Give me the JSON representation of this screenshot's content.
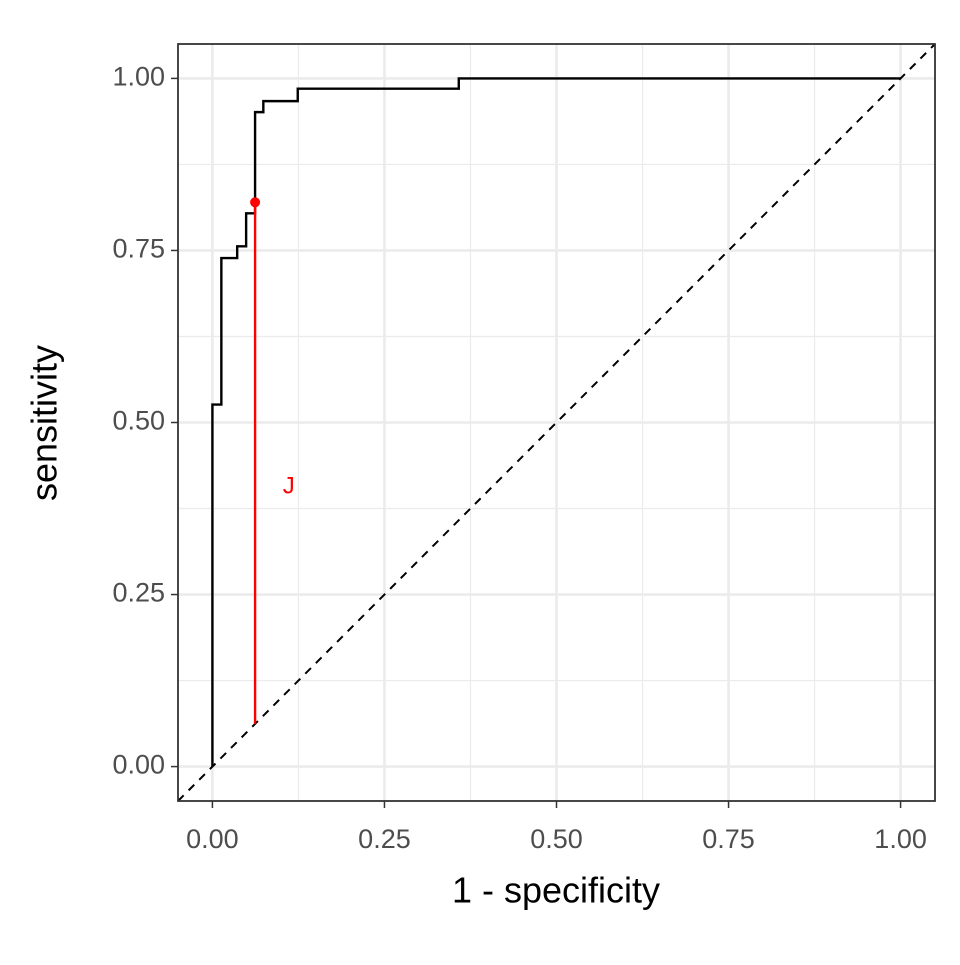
{
  "chart_data": {
    "type": "line",
    "xlabel": "1 - specificity",
    "ylabel": "sensitivity",
    "xlim": [
      -0.05,
      1.05
    ],
    "ylim": [
      -0.05,
      1.05
    ],
    "xticks": [
      {
        "value": 0,
        "label": "0.00"
      },
      {
        "value": 0.25,
        "label": "0.25"
      },
      {
        "value": 0.5,
        "label": "0.50"
      },
      {
        "value": 0.75,
        "label": "0.75"
      },
      {
        "value": 1,
        "label": "1.00"
      }
    ],
    "yticks": [
      {
        "value": 0,
        "label": "0.00"
      },
      {
        "value": 0.25,
        "label": "0.25"
      },
      {
        "value": 0.5,
        "label": "0.50"
      },
      {
        "value": 0.75,
        "label": "0.75"
      },
      {
        "value": 1,
        "label": "1.00"
      }
    ],
    "minor_xticks": [
      0.125,
      0.375,
      0.625,
      0.875
    ],
    "minor_yticks": [
      0.125,
      0.375,
      0.625,
      0.875
    ],
    "grid": true,
    "diagonal": true,
    "series": [
      {
        "color": "#000000",
        "x": [
          0,
          0,
          0.013,
          0.013,
          0.036,
          0.036,
          0.049,
          0.049,
          0.062,
          0.062,
          0.074,
          0.074,
          0.124,
          0.124,
          0.358,
          0.358,
          1
        ],
        "values": [
          0,
          0.526,
          0.526,
          0.739,
          0.739,
          0.756,
          0.756,
          0.804,
          0.804,
          0.951,
          0.951,
          0.967,
          0.967,
          0.985,
          0.985,
          1,
          1
        ]
      }
    ],
    "youden": {
      "x": 0.062,
      "y": 0.82,
      "y0": 0.062,
      "color": "#ff0000",
      "label": "J",
      "label_x": 0.111,
      "label_y": 0.406
    }
  }
}
